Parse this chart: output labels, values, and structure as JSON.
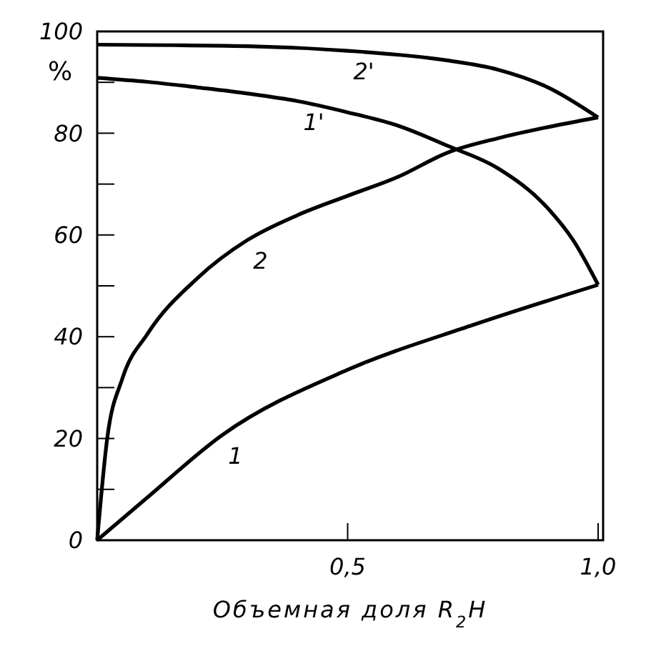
{
  "chart_data": {
    "type": "line",
    "xlabel": "Объемная доля R$_{2}$H",
    "ylabel": "%",
    "xlim": [
      0,
      1.01
    ],
    "ylim": [
      0,
      100
    ],
    "xticks": [
      {
        "value": 0.5,
        "label": "0,5"
      },
      {
        "value": 1,
        "label": "1,0"
      }
    ],
    "yticks": [
      0,
      {
        "value": 10,
        "label": null
      },
      20,
      {
        "value": 30,
        "label": null
      },
      40,
      {
        "value": 50,
        "label": null
      },
      60,
      {
        "value": 70,
        "label": null
      },
      80,
      {
        "value": 90,
        "label": null
      },
      100
    ],
    "grid": false,
    "legend": false,
    "marker": "none",
    "line_style": "solid",
    "series": [
      {
        "name": "1",
        "color": "#000000",
        "x": [
          0,
          0.1,
          0.25,
          0.5,
          0.75,
          1.0
        ],
        "values": [
          0,
          8.4,
          20.7,
          33.5,
          42.3,
          50.2
        ]
      },
      {
        "name": "2",
        "color": "#000000",
        "x": [
          0,
          0.02,
          0.05,
          0.1,
          0.2,
          0.3,
          0.4,
          0.5,
          0.6,
          0.7,
          0.8,
          0.9,
          1.0
        ],
        "values": [
          0,
          20,
          31.7,
          40.5,
          51.5,
          59,
          63.9,
          67.7,
          71.4,
          76.2,
          79,
          81.2,
          83.1
        ]
      },
      {
        "name": "1'",
        "color": "#000000",
        "x": [
          0,
          0.1,
          0.2,
          0.3,
          0.4,
          0.5,
          0.6,
          0.7,
          0.8,
          0.9,
          0.95,
          1.0
        ],
        "values": [
          90.9,
          90.1,
          89,
          87.8,
          86.3,
          84.1,
          81.5,
          77.5,
          73.1,
          65.2,
          59,
          50.2
        ]
      },
      {
        "name": "2'",
        "color": "#000000",
        "x": [
          0,
          0.3,
          0.5,
          0.7,
          0.8,
          0.9,
          1.0
        ],
        "values": [
          97.4,
          97.1,
          96.2,
          94.3,
          92.5,
          89,
          83.1
        ]
      }
    ]
  }
}
